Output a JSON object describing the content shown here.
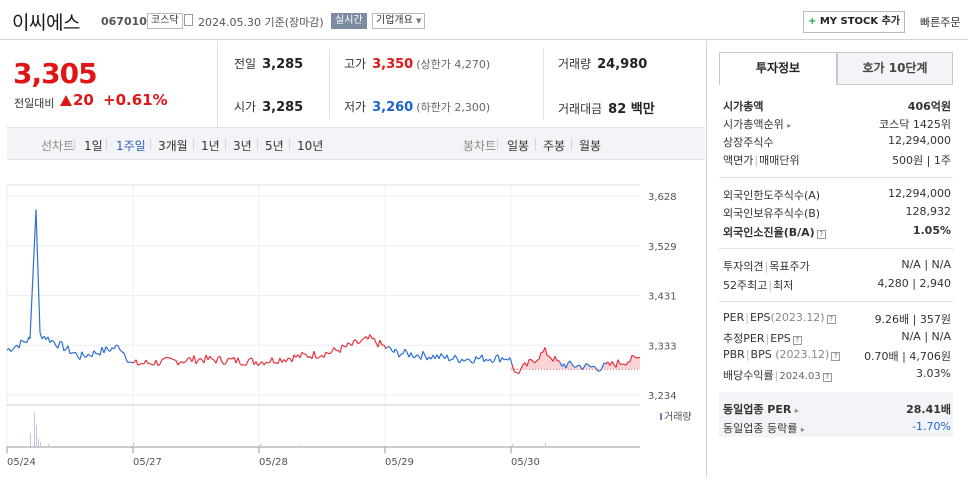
{
  "header": {
    "company_name": "이씨에스",
    "stock_code": "067010",
    "market": "코스닥",
    "date_text": "2024.05.30  기준(장마감)",
    "realtime_label": "실시간",
    "overview_label": "기업개요",
    "mystock_label": "MY STOCK 추가",
    "quick_order_label": "빠른주문"
  },
  "price": {
    "current": "3,305",
    "change_label": "전일대비",
    "change_value": "20",
    "change_pct": "+0.61%"
  },
  "stats": {
    "prev_close_label": "전일",
    "prev_close": "3,285",
    "open_label": "시가",
    "open": "3,285",
    "high_label": "고가",
    "high": "3,350",
    "upper_limit": "(상한가 4,270)",
    "low_label": "저가",
    "low": "3,260",
    "lower_limit": "(하한가 2,300)",
    "volume_label": "거래량",
    "volume": "24,980",
    "amount_label": "거래대금",
    "amount": "82 백만"
  },
  "chart_controls": {
    "line_chart_label": "선차트",
    "line_periods": [
      "1일",
      "1주일",
      "3개월",
      "1년",
      "3년",
      "5년",
      "10년"
    ],
    "candle_chart_label": "봉차트",
    "candle_periods": [
      "일봉",
      "주봉",
      "월봉"
    ]
  },
  "chart_data": {
    "type": "line",
    "y_ticks": [
      "3,628",
      "3,529",
      "3,431",
      "3,333",
      "3,234"
    ],
    "ylim": [
      3234,
      3628
    ],
    "x_ticks": [
      "05/24",
      "05/27",
      "05/28",
      "05/29",
      "05/30"
    ],
    "volume_legend": "거래량",
    "reference_price": 3285,
    "colors": {
      "up": "#e8323c",
      "down": "#2e6fd3",
      "fill_up": "#f7c9cc"
    }
  },
  "info_panel": {
    "tab_active": "투자정보",
    "tab_other": "호가 10단계",
    "market_cap_label": "시가총액",
    "market_cap": "406억원",
    "market_cap_rank_label": "시가총액순위",
    "market_cap_rank": "코스닥 1425위",
    "shares_label": "상장주식수",
    "shares": "12,294,000",
    "par_label": "액면가",
    "unit_label": "매매단위",
    "par_unit": "500원 | 1주",
    "foreign_limit_label": "외국인한도주식수(A)",
    "foreign_limit": "12,294,000",
    "foreign_hold_label": "외국인보유주식수(B)",
    "foreign_hold": "128,932",
    "foreign_ratio_label": "외국인소진율(B/A)",
    "foreign_ratio": "1.05%",
    "opinion_label": "투자의견",
    "target_label": "목표주가",
    "opinion_target": "N/A | N/A",
    "week52_high_label": "52주최고",
    "week52_low_label": "최저",
    "week52": "4,280 | 2,940",
    "per_label": "PER",
    "eps_label": "EPS",
    "eps_year": "(2023.12)",
    "per_eps": "9.26배 | 357원",
    "est_per_label": "추정PER",
    "est_eps_label": "EPS",
    "est_per_eps": "N/A | N/A",
    "pbr_label": "PBR",
    "bps_label": "BPS",
    "bps_year": "(2023.12)",
    "pbr_bps": "0.70배 | 4,706원",
    "dividend_label": "배당수익률",
    "dividend_year": "2024.03",
    "dividend": "3.03%",
    "sector_per_label": "동일업종 PER",
    "sector_per": "28.41배",
    "sector_change_label": "동일업종 등락률",
    "sector_change": "-1.70%"
  }
}
